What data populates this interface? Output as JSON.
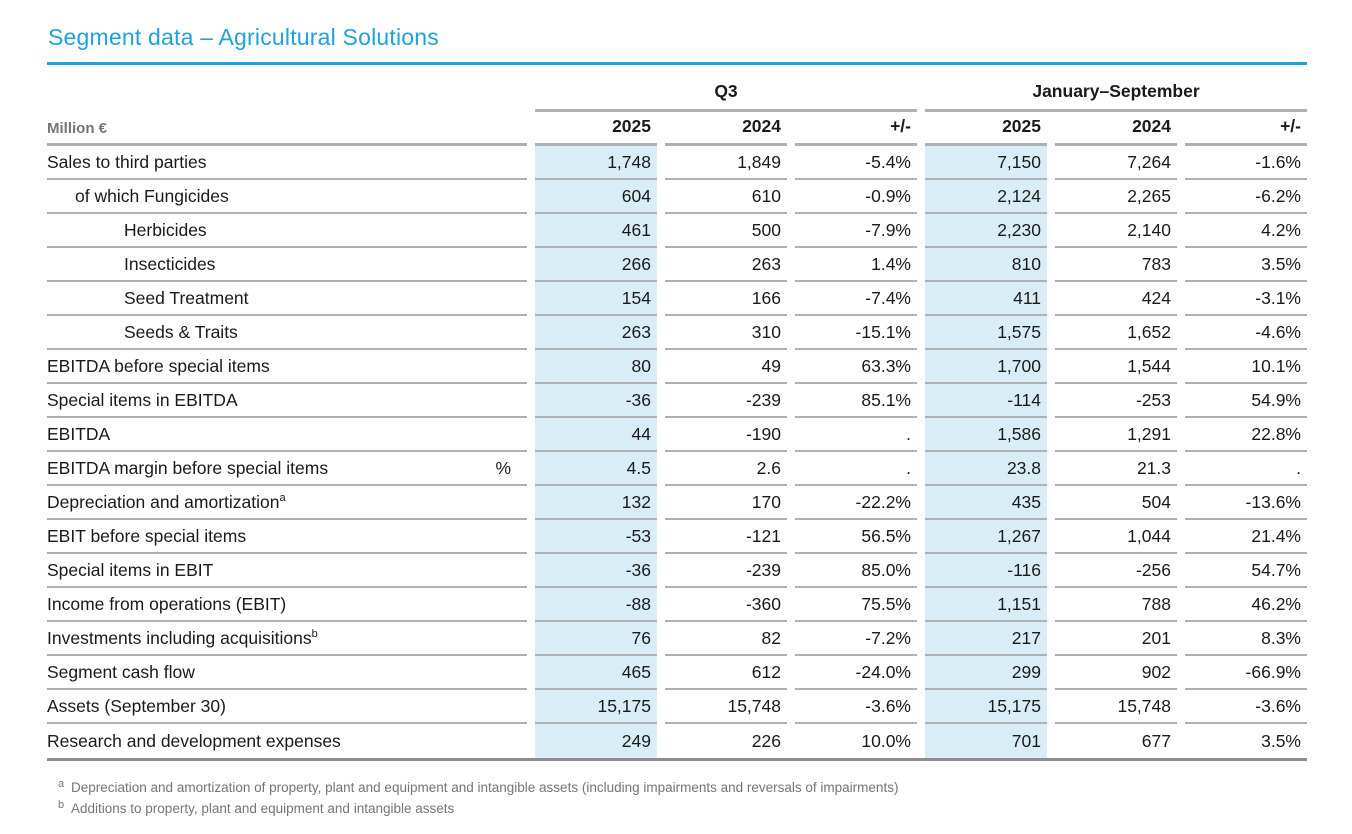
{
  "title": "Segment data – Agricultural Solutions",
  "colors": {
    "accent": "#1fa2da",
    "highlight": "#d9edf7",
    "separator": "#b0b0b0",
    "table_bottom_line": "#8d8d8d"
  },
  "table": {
    "unit_label": "Million €",
    "group_headers": [
      {
        "label": "Q3"
      },
      {
        "label": "January–September"
      }
    ],
    "col_headers": [
      "2025",
      "2024",
      "+/-",
      "2025",
      "2024",
      "+/-"
    ],
    "rows": [
      {
        "label": "Sales to third parties",
        "indent": 0,
        "values": [
          "1,748",
          "1,849",
          "-5.4%",
          "7,150",
          "7,264",
          "-1.6%"
        ]
      },
      {
        "label": "of which Fungicides",
        "indent": 1,
        "values": [
          "604",
          "610",
          "-0.9%",
          "2,124",
          "2,265",
          "-6.2%"
        ]
      },
      {
        "label": "Herbicides",
        "indent": 2,
        "values": [
          "461",
          "500",
          "-7.9%",
          "2,230",
          "2,140",
          "4.2%"
        ]
      },
      {
        "label": "Insecticides",
        "indent": 2,
        "values": [
          "266",
          "263",
          "1.4%",
          "810",
          "783",
          "3.5%"
        ]
      },
      {
        "label": "Seed Treatment",
        "indent": 2,
        "values": [
          "154",
          "166",
          "-7.4%",
          "411",
          "424",
          "-3.1%"
        ]
      },
      {
        "label": "Seeds & Traits",
        "indent": 2,
        "values": [
          "263",
          "310",
          "-15.1%",
          "1,575",
          "1,652",
          "-4.6%"
        ]
      },
      {
        "label": "EBITDA before special items",
        "indent": 0,
        "values": [
          "80",
          "49",
          "63.3%",
          "1,700",
          "1,544",
          "10.1%"
        ]
      },
      {
        "label": "Special items in EBITDA",
        "indent": 0,
        "values": [
          "-36",
          "-239",
          "85.1%",
          "-114",
          "-253",
          "54.9%"
        ]
      },
      {
        "label": "EBITDA",
        "indent": 0,
        "values": [
          "44",
          "-190",
          ".",
          "1,586",
          "1,291",
          "22.8%"
        ]
      },
      {
        "label": "EBITDA margin before special items",
        "indent": 0,
        "unit": "%",
        "values": [
          "4.5",
          "2.6",
          ".",
          "23.8",
          "21.3",
          "."
        ]
      },
      {
        "label": "Depreciation and amortization",
        "indent": 0,
        "sup": "a",
        "values": [
          "132",
          "170",
          "-22.2%",
          "435",
          "504",
          "-13.6%"
        ]
      },
      {
        "label": "EBIT before special items",
        "indent": 0,
        "values": [
          "-53",
          "-121",
          "56.5%",
          "1,267",
          "1,044",
          "21.4%"
        ]
      },
      {
        "label": "Special items in EBIT",
        "indent": 0,
        "values": [
          "-36",
          "-239",
          "85.0%",
          "-116",
          "-256",
          "54.7%"
        ]
      },
      {
        "label": "Income from operations (EBIT)",
        "indent": 0,
        "values": [
          "-88",
          "-360",
          "75.5%",
          "1,151",
          "788",
          "46.2%"
        ]
      },
      {
        "label": "Investments including acquisitions",
        "indent": 0,
        "sup": "b",
        "values": [
          "76",
          "82",
          "-7.2%",
          "217",
          "201",
          "8.3%"
        ]
      },
      {
        "label": "Segment cash flow",
        "indent": 0,
        "values": [
          "465",
          "612",
          "-24.0%",
          "299",
          "902",
          "-66.9%"
        ]
      },
      {
        "label": "Assets (September 30)",
        "indent": 0,
        "values": [
          "15,175",
          "15,748",
          "-3.6%",
          "15,175",
          "15,748",
          "-3.6%"
        ]
      },
      {
        "label": "Research and development expenses",
        "indent": 0,
        "values": [
          "249",
          "226",
          "10.0%",
          "701",
          "677",
          "3.5%"
        ]
      }
    ]
  },
  "footnotes": [
    {
      "marker": "a",
      "text": "Depreciation and amortization of property, plant and equipment and intangible assets (including impairments and reversals of impairments)"
    },
    {
      "marker": "b",
      "text": "Additions to property, plant and equipment and intangible assets"
    }
  ]
}
